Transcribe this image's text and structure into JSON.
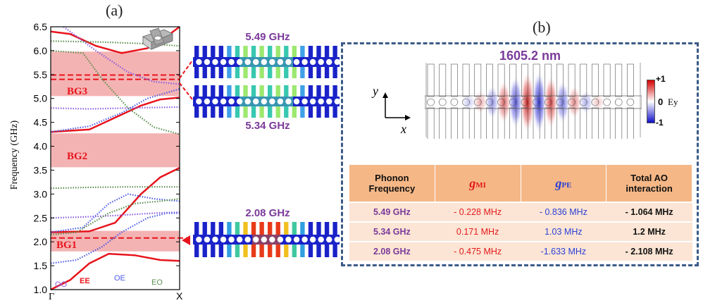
{
  "panel_a": {
    "label": "(a)",
    "y_axis_label": "Frequency (GHz)",
    "y_ticks": [
      "6.5",
      "6.0",
      "5.5",
      "5.0",
      "4.5",
      "4.0",
      "3.5",
      "3.0",
      "2.5",
      "2.0",
      "1.5",
      "1.0"
    ],
    "x_tick_start": "Γ",
    "x_tick_end": "X",
    "bandgaps": [
      {
        "name": "BG3",
        "lo": 5.05,
        "hi": 5.98
      },
      {
        "name": "BG2",
        "lo": 3.56,
        "hi": 4.27
      },
      {
        "name": "BG1",
        "lo": 1.8,
        "hi": 2.23
      }
    ],
    "legend": {
      "oo": "OO",
      "ee": "EE",
      "oe": "OE",
      "eo": "EO"
    },
    "colors": {
      "ee": "#e8141c",
      "oo": "#8a5ce0",
      "oe": "#4d5be8",
      "eo": "#5c8f4f",
      "bandgap": "#f4b3b3",
      "dashed": "#e8141c"
    }
  },
  "modes": {
    "m549": "5.49 GHz",
    "m534": "5.34 GHz",
    "m208": "2.08 GHz"
  },
  "panel_b": {
    "label": "(b)",
    "wavelength": "1605.2 nm",
    "axis_y": "y",
    "axis_x": "x",
    "colorbar_top": "+1",
    "colorbar_mid": "0",
    "colorbar_field": "Ey",
    "colorbar_bottom": "-1",
    "table": {
      "header_freq_line1": "Phonon",
      "header_freq_line2": "Frequency",
      "header_mi_sym": "g",
      "header_mi_sub": "MI",
      "header_pe_sym": "g",
      "header_pe_sub": "PE",
      "header_total_line1": "Total AO",
      "header_total_line2": "interaction",
      "rows": [
        {
          "freq": "5.49 GHz",
          "mi": "- 0.228 MHz",
          "pe": "- 0.836 MHz",
          "total": "- 1.064 MHz"
        },
        {
          "freq": "5.34 GHz",
          "mi": "0.171 MHz",
          "pe": "1.03 MHz",
          "total": "1.2 MHz"
        },
        {
          "freq": "2.08 GHz",
          "mi": "- 0.475 MHz",
          "pe": "-1.633 MHz",
          "total": "- 2.108 MHz"
        }
      ]
    }
  }
}
